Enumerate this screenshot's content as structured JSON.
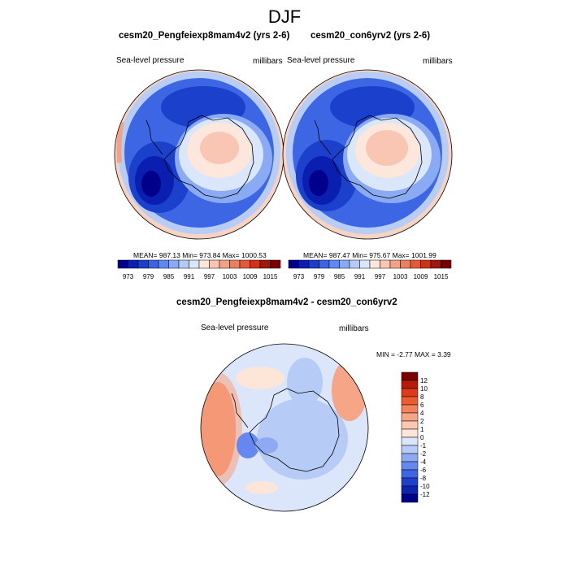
{
  "title": "DJF",
  "panels": [
    {
      "title": "cesm20_Pengfeiexp8mam4v2 (yrs 2-6)",
      "variable": "Sea-level pressure",
      "units": "millibars",
      "stats": "MEAN= 987.13   Min= 973.84   Max= 1000.53"
    },
    {
      "title": "cesm20_con6yrv2 (yrs 2-6)",
      "variable": "Sea-level pressure",
      "units": "millibars",
      "stats": "MEAN= 987.47   Min= 975.67   Max= 1001.99"
    }
  ],
  "diff_panel": {
    "title": "cesm20_Pengfeiexp8mam4v2 - cesm20_con6yrv2",
    "variable": "Sea-level pressure",
    "units": "millibars",
    "stats": "MIN =  -2.77 MAX =   3.39"
  },
  "colorbar_abs": {
    "colors": [
      "#00008b",
      "#0a1fb0",
      "#1a3fd0",
      "#3a64e6",
      "#5f88f0",
      "#8aaaf4",
      "#b5cbf7",
      "#dae6fa",
      "#fde6dc",
      "#f8c6b2",
      "#f2a386",
      "#ec7f5e",
      "#e25a38",
      "#cc3418",
      "#a01608",
      "#7a0000"
    ],
    "labels": [
      "973",
      "979",
      "985",
      "991",
      "997",
      "1003",
      "1009",
      "1015"
    ]
  },
  "colorbar_diff": {
    "colors": [
      "#7a0000",
      "#b81a0a",
      "#dc3a18",
      "#ec5c30",
      "#f2825c",
      "#f6a686",
      "#fac7b0",
      "#fde5d8",
      "#dbe6fb",
      "#b7cbf7",
      "#8eaaf3",
      "#6488ef",
      "#3f64e4",
      "#1f40cc",
      "#0c24ac",
      "#00008b"
    ],
    "labels": [
      "12",
      "10",
      "8",
      "6",
      "4",
      "2",
      "1",
      "0",
      "-1",
      "-2",
      "-4",
      "-6",
      "-8",
      "-10",
      "-12"
    ]
  }
}
